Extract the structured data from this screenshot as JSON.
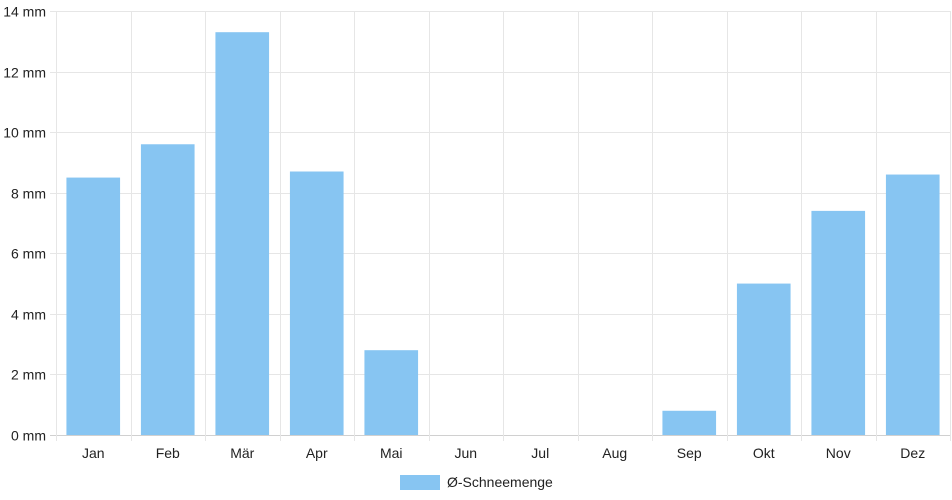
{
  "chart_data": {
    "type": "bar",
    "categories": [
      "Jan",
      "Feb",
      "Mär",
      "Apr",
      "Mai",
      "Jun",
      "Jul",
      "Aug",
      "Sep",
      "Okt",
      "Nov",
      "Dez"
    ],
    "series": [
      {
        "name": "Ø-Schneemenge",
        "values": [
          8.5,
          9.6,
          13.3,
          8.7,
          2.8,
          0,
          0,
          0,
          0.8,
          5.0,
          7.4,
          8.6
        ],
        "color": "#87c5f2"
      }
    ],
    "y_ticks": [
      "0 mm",
      "2 mm",
      "4 mm",
      "6 mm",
      "8 mm",
      "10 mm",
      "12 mm",
      "14 mm"
    ],
    "ylim": [
      0,
      14
    ],
    "y_unit": "mm",
    "grid": true,
    "legend": "bottom-center",
    "title": "",
    "xlabel": "",
    "ylabel": ""
  }
}
